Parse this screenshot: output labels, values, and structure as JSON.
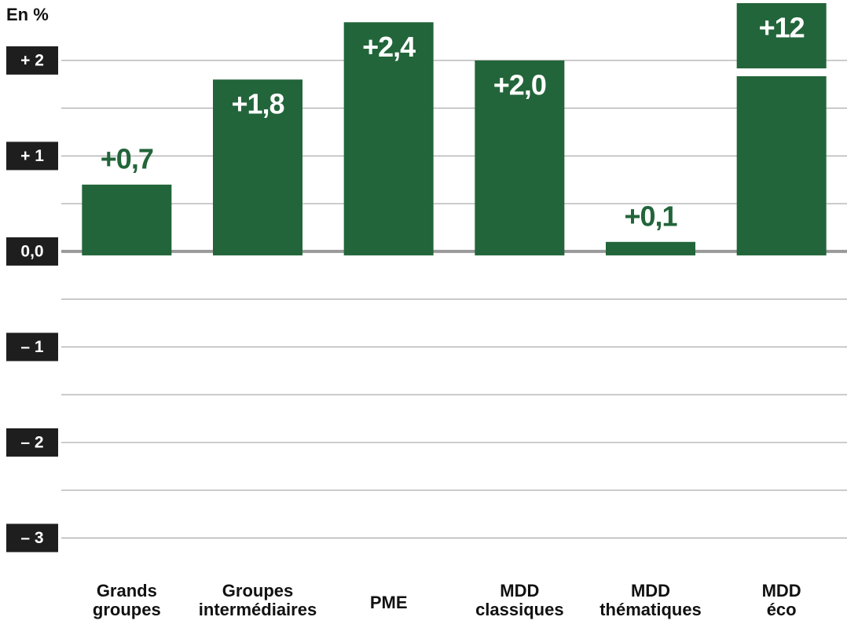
{
  "chart_data": {
    "type": "bar",
    "y_label": "En %",
    "categories": [
      "Grands groupes",
      "Groupes intermédiaires",
      "PME",
      "MDD classiques",
      "MDD thématiques",
      "MDD éco"
    ],
    "values": [
      0.7,
      1.8,
      2.4,
      2.0,
      0.1,
      12
    ],
    "value_labels": [
      "+0,7",
      "+1,8",
      "+2,4",
      "+2,0",
      "+0,1",
      "+12"
    ],
    "color": "#22653a",
    "ylim": [
      -3.1,
      2.6
    ],
    "yticks": [
      {
        "value": 2,
        "label": "+ 2"
      },
      {
        "value": 1,
        "label": "+ 1"
      },
      {
        "value": 0,
        "label": "0,0"
      },
      {
        "value": -1,
        "label": "– 1"
      },
      {
        "value": -2,
        "label": "– 2"
      },
      {
        "value": -3,
        "label": "– 3"
      }
    ],
    "minor_yticks": [
      1.5,
      0.5,
      -0.5,
      -1.5,
      -2.5
    ],
    "grid": true
  }
}
